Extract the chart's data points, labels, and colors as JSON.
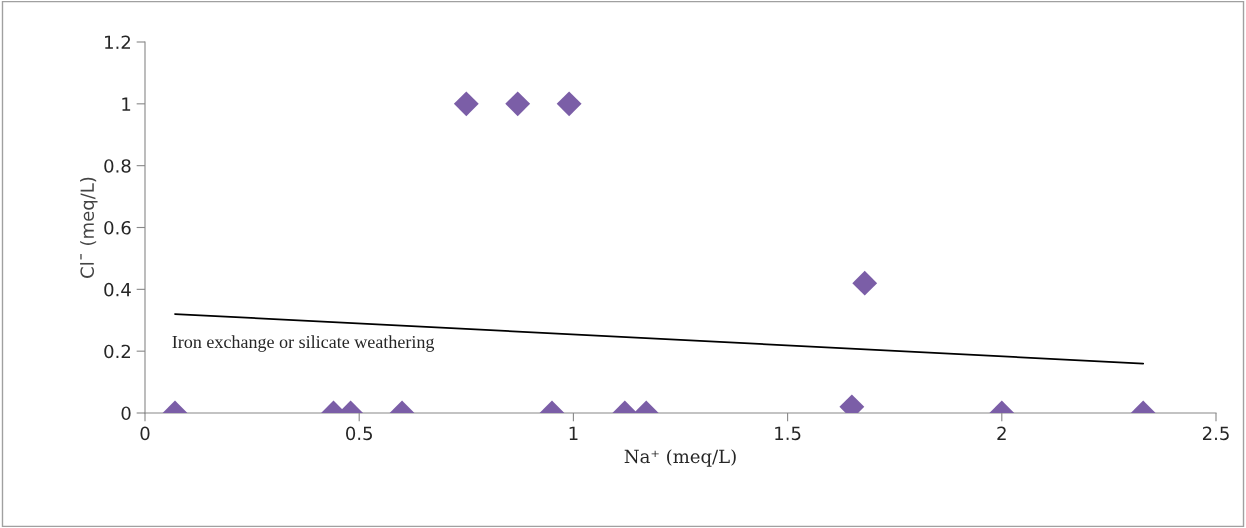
{
  "chart_data": {
    "type": "scatter",
    "xlabel": "Na⁺ (meq/L)",
    "ylabel": "Cl¯ (meq/L)",
    "series": [
      {
        "color": "#7b5ea7",
        "marker": "diamond",
        "x": [
          0.07,
          0.44,
          0.48,
          0.6,
          0.75,
          0.87,
          0.95,
          0.99,
          1.12,
          1.17,
          1.65,
          1.68,
          2.0,
          2.33
        ],
        "values": [
          0,
          0,
          0,
          0,
          1,
          1,
          0,
          1,
          0,
          0,
          0.02,
          0.42,
          0,
          0
        ]
      },
      {
        "type": "line",
        "color": "#000000",
        "marker": "none",
        "x": [
          0.07,
          2.33
        ],
        "values": [
          0.32,
          0.16
        ]
      }
    ],
    "annotations": [
      "Iron exchange or silicate weathering"
    ],
    "xlim": [
      0,
      2.5
    ],
    "xticks": [
      0,
      0.5,
      1,
      1.5,
      2,
      2.5
    ],
    "ylim": [
      0,
      1.2
    ],
    "yticks": [
      0,
      0.2,
      0.4,
      0.6,
      0.8,
      1,
      1.2
    ],
    "grid": false,
    "legend": false
  }
}
